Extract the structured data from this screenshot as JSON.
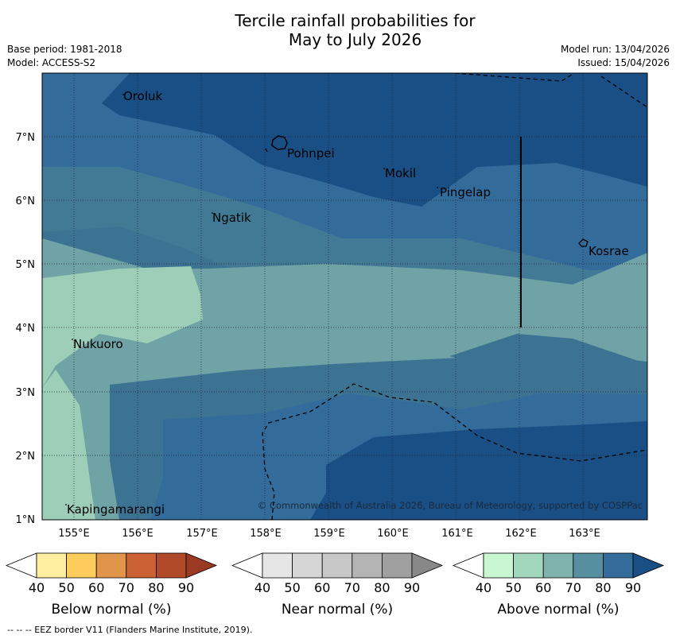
{
  "title_line1": "Tercile rainfall probabilities for",
  "title_line2": "May to July 2026",
  "base_period": "Base period: 1981-2018",
  "model": "Model: ACCESS-S2",
  "model_run": "Model run: 13/04/2026",
  "issued": "Issued: 15/04/2026",
  "copyright": "© Commonwealth of Australia 2026, Bureau of Meteorology, supported by COSPPac",
  "x_ticks": [
    "155°E",
    "156°E",
    "157°E",
    "158°E",
    "159°E",
    "160°E",
    "161°E",
    "162°E",
    "163°E"
  ],
  "y_ticks": [
    "7°N",
    "6°N",
    "5°N",
    "4°N",
    "3°N",
    "2°N",
    "1°N"
  ],
  "places": {
    "oroluk": "Oroluk",
    "pohnpei": "Pohnpei",
    "mokil": "Mokil",
    "pingelap": "Pingelap",
    "ngatik": "Ngatik",
    "kosrae": "Kosrae",
    "nukuoro": "Nukuoro",
    "kapingamarangi": "Kapingamarangi"
  },
  "colorbars": {
    "below": {
      "label": "Below normal (%)",
      "ticks": [
        "40",
        "50",
        "60",
        "70",
        "80",
        "90"
      ],
      "colors": [
        "#ffffff",
        "#ffeda0",
        "#fecc5c",
        "#e0954a",
        "#cc6233",
        "#b04a28",
        "#9a3a22"
      ]
    },
    "near": {
      "label": "Near normal (%)",
      "ticks": [
        "40",
        "50",
        "60",
        "70",
        "80",
        "90"
      ],
      "colors": [
        "#ffffff",
        "#e6e6e6",
        "#d6d6d6",
        "#c8c8c8",
        "#b4b4b4",
        "#a0a0a0",
        "#888888"
      ]
    },
    "above": {
      "label": "Above normal (%)",
      "ticks": [
        "40",
        "50",
        "60",
        "70",
        "80",
        "90"
      ],
      "colors": [
        "#ffffff",
        "#c8f7d2",
        "#a3d7bd",
        "#80b3ad",
        "#568f9f",
        "#336b9b",
        "#1a4f86"
      ]
    }
  },
  "footnote": "--  --  -- EEZ border V11 (Flanders Marine Institute, 2019)."
}
